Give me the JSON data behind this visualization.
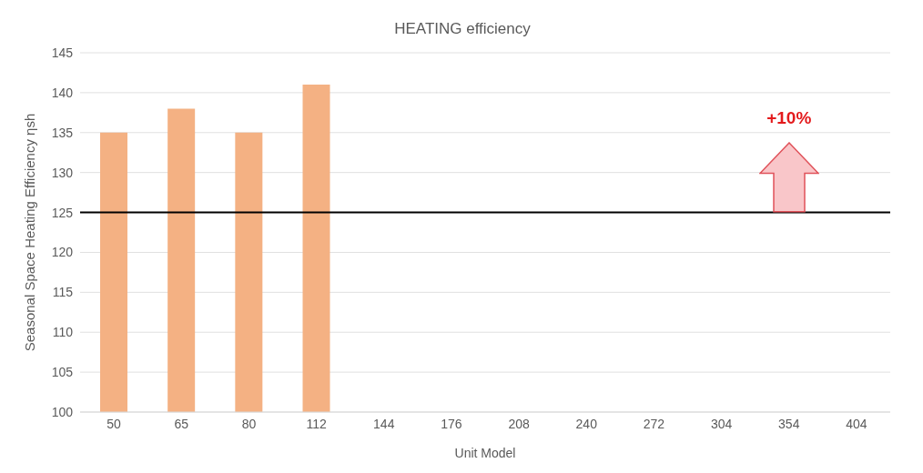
{
  "chart_data": {
    "type": "bar",
    "title": "HEATING efficiency",
    "xlabel": "Unit Model",
    "ylabel": "Seasonal Space Heating Efficiency ηsh",
    "categories": [
      "50",
      "65",
      "80",
      "112",
      "144",
      "176",
      "208",
      "240",
      "272",
      "304",
      "354",
      "404"
    ],
    "values": [
      135,
      138,
      135,
      141,
      null,
      null,
      null,
      null,
      null,
      null,
      null,
      null
    ],
    "color": "#f4b183",
    "ylim": [
      100,
      145
    ],
    "yticks": [
      100,
      105,
      110,
      115,
      120,
      125,
      130,
      135,
      140,
      145
    ],
    "grid": "y",
    "ref_lines": [
      {
        "axis": "y",
        "value": 125,
        "color": "#000000"
      }
    ],
    "annotations": [
      "+10%"
    ]
  }
}
